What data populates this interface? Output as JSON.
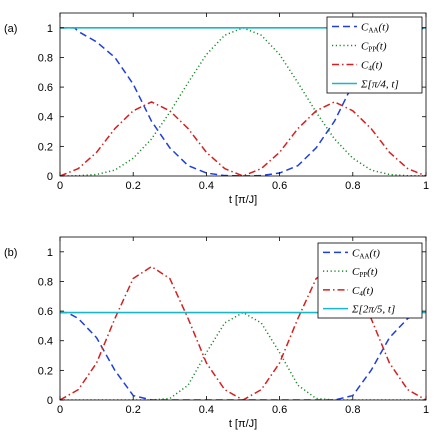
{
  "chart_data": [
    {
      "panel_label": "(a)",
      "type": "line",
      "xlabel": "t [π/J]",
      "xlim": [
        0,
        1
      ],
      "ylim": [
        0,
        1.1
      ],
      "xticks": [
        "0",
        "0.2",
        "0.4",
        "0.6",
        "0.8",
        "1"
      ],
      "yticks": [
        "0",
        "0.2",
        "0.4",
        "0.6",
        "0.8",
        "1"
      ],
      "grid": false,
      "legend_position": "top-right",
      "series": [
        {
          "name": "C_AA(t)",
          "legend_main": "C",
          "legend_sub": "AA",
          "legend_tail": "(t)",
          "color": "#1f3fd9",
          "dash": "dashed",
          "x": [
            0,
            0.04,
            0.05,
            0.1,
            0.15,
            0.2,
            0.25,
            0.3,
            0.35,
            0.4,
            0.45,
            0.5,
            0.55,
            0.6,
            0.65,
            0.7,
            0.75,
            0.8,
            0.85,
            0.9,
            0.95,
            1
          ],
          "y": [
            1,
            1,
            0.975,
            0.905,
            0.8,
            0.62,
            0.37,
            0.19,
            0.07,
            0.02,
            0.003,
            0,
            0.003,
            0.02,
            0.07,
            0.19,
            0.37,
            0.62,
            0.8,
            0.905,
            0.975,
            1
          ]
        },
        {
          "name": "C_PP(t)",
          "legend_main": "C",
          "legend_sub": "PP",
          "legend_tail": "(t)",
          "color": "#1a8a2a",
          "dash": "dotted",
          "x": [
            0,
            0.05,
            0.1,
            0.15,
            0.2,
            0.25,
            0.3,
            0.35,
            0.4,
            0.45,
            0.5,
            0.55,
            0.6,
            0.65,
            0.7,
            0.75,
            0.8,
            0.85,
            0.9,
            0.95,
            1
          ],
          "y": [
            0,
            0.002,
            0.01,
            0.04,
            0.12,
            0.25,
            0.43,
            0.63,
            0.82,
            0.95,
            1,
            0.95,
            0.82,
            0.63,
            0.43,
            0.25,
            0.12,
            0.04,
            0.01,
            0.002,
            0
          ]
        },
        {
          "name": "C_4(t)",
          "legend_main": "C",
          "legend_sub": "4",
          "legend_tail": "(t)",
          "color": "#d42020",
          "dash": "dashdot",
          "x": [
            0,
            0.05,
            0.1,
            0.15,
            0.2,
            0.25,
            0.3,
            0.35,
            0.4,
            0.45,
            0.5,
            0.55,
            0.6,
            0.65,
            0.7,
            0.75,
            0.8,
            0.85,
            0.9,
            0.95,
            1
          ],
          "y": [
            0,
            0.05,
            0.16,
            0.32,
            0.44,
            0.5,
            0.44,
            0.32,
            0.16,
            0.05,
            0,
            0.05,
            0.16,
            0.32,
            0.44,
            0.5,
            0.44,
            0.32,
            0.16,
            0.05,
            0
          ]
        },
        {
          "name": "Σ[π/4, t]",
          "legend_main": "Σ[π/4, t]",
          "legend_sub": "",
          "legend_tail": "",
          "color": "#18b8c8",
          "dash": "solid",
          "x": [
            0,
            1
          ],
          "y": [
            1,
            1
          ]
        }
      ]
    },
    {
      "panel_label": "(b)",
      "type": "line",
      "xlabel": "t [π/J]",
      "xlim": [
        0,
        1
      ],
      "ylim": [
        0,
        1.1
      ],
      "xticks": [
        "0",
        "0.2",
        "0.4",
        "0.6",
        "0.8",
        "1"
      ],
      "yticks": [
        "0",
        "0.2",
        "0.4",
        "0.6",
        "0.8",
        "1"
      ],
      "grid": false,
      "legend_position": "top-right",
      "series": [
        {
          "name": "C_AA(t)",
          "legend_main": "C",
          "legend_sub": "AA",
          "legend_tail": "(t)",
          "color": "#1f3fd9",
          "dash": "dashed",
          "x": [
            0,
            0.02,
            0.05,
            0.1,
            0.15,
            0.2,
            0.25,
            0.5,
            0.75,
            0.8,
            0.85,
            0.9,
            0.95,
            0.98,
            1
          ],
          "y": [
            0.59,
            0.59,
            0.55,
            0.42,
            0.2,
            0.03,
            0,
            0,
            0,
            0.03,
            0.2,
            0.42,
            0.55,
            0.59,
            0.59
          ]
        },
        {
          "name": "C_PP(t)",
          "legend_main": "C",
          "legend_sub": "PP",
          "legend_tail": "(t)",
          "color": "#1a8a2a",
          "dash": "dotted",
          "x": [
            0,
            0.25,
            0.3,
            0.35,
            0.4,
            0.45,
            0.5,
            0.55,
            0.6,
            0.65,
            0.7,
            0.75,
            1
          ],
          "y": [
            0,
            0,
            0.01,
            0.1,
            0.32,
            0.52,
            0.59,
            0.52,
            0.32,
            0.1,
            0.01,
            0,
            0
          ]
        },
        {
          "name": "C_4(t)",
          "legend_main": "C",
          "legend_sub": "4",
          "legend_tail": "(t)",
          "color": "#d42020",
          "dash": "dashdot",
          "x": [
            0,
            0.05,
            0.1,
            0.15,
            0.2,
            0.25,
            0.3,
            0.35,
            0.4,
            0.45,
            0.5,
            0.55,
            0.6,
            0.65,
            0.7,
            0.75,
            0.8,
            0.85,
            0.9,
            0.95,
            1
          ],
          "y": [
            0,
            0.07,
            0.25,
            0.55,
            0.82,
            0.9,
            0.82,
            0.55,
            0.25,
            0.07,
            0,
            0.07,
            0.25,
            0.55,
            0.82,
            0.9,
            0.82,
            0.55,
            0.25,
            0.07,
            0
          ]
        },
        {
          "name": "Σ[2π/5, t]",
          "legend_main": "Σ[2π/5, t]",
          "legend_sub": "",
          "legend_tail": "",
          "color": "#18b8c8",
          "dash": "solid",
          "x": [
            0,
            1
          ],
          "y": [
            0.59,
            0.59
          ]
        }
      ]
    }
  ]
}
